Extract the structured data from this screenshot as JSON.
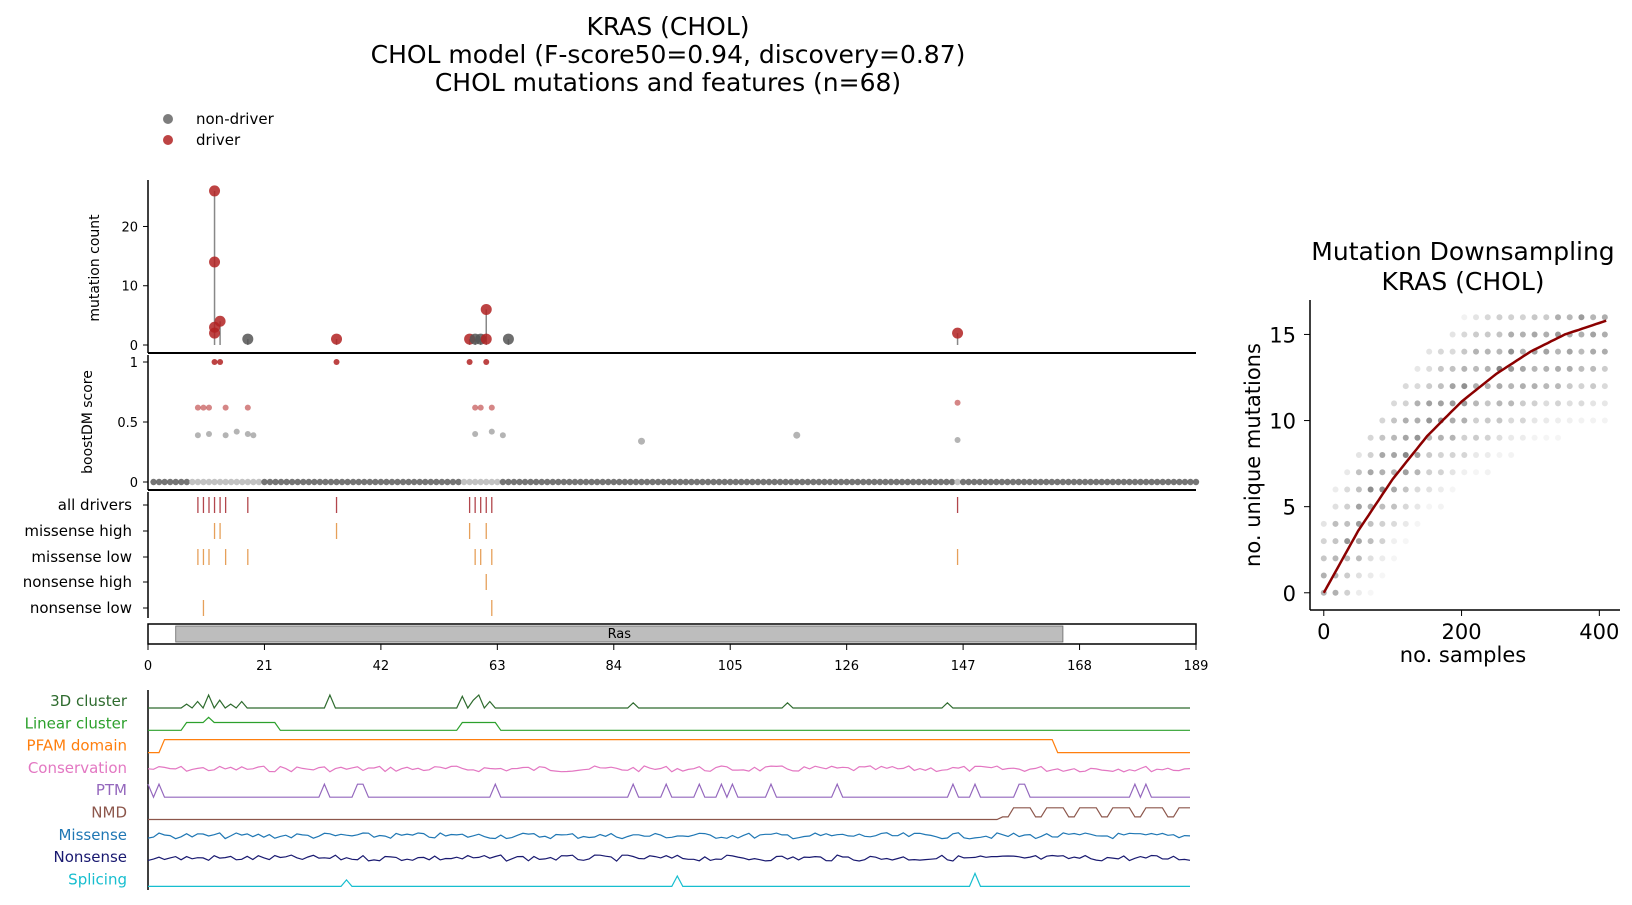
{
  "figure": {
    "title_lines": [
      "KRAS (CHOL)",
      "CHOL model (F-score50=0.94, discovery=0.87)",
      "CHOL mutations and features (n=68)"
    ],
    "legend": [
      {
        "label": "non-driver",
        "color": "#666666"
      },
      {
        "label": "driver",
        "color": "#b22222"
      }
    ],
    "domain": {
      "label": "Ras",
      "start": 5,
      "end": 165
    },
    "feature_labels": [
      {
        "label": "3D cluster",
        "color": "#2e6b2e"
      },
      {
        "label": "Linear cluster",
        "color": "#2ca02c"
      },
      {
        "label": "PFAM domain",
        "color": "#ff7f0e"
      },
      {
        "label": "Conservation",
        "color": "#e377c2"
      },
      {
        "label": "PTM",
        "color": "#9467bd"
      },
      {
        "label": "NMD",
        "color": "#8c564b"
      },
      {
        "label": "Missense",
        "color": "#1f77b4"
      },
      {
        "label": "Nonsense",
        "color": "#191970"
      },
      {
        "label": "Splicing",
        "color": "#17becf"
      }
    ]
  },
  "chart_data": [
    {
      "type": "scatter",
      "name": "mutation count lollipop",
      "ylabel": "mutation count",
      "xlim": [
        0,
        189
      ],
      "ylim": [
        0,
        27
      ],
      "yticks": [
        0,
        10,
        20
      ],
      "xticks": [
        0,
        21,
        42,
        63,
        84,
        105,
        126,
        147,
        168,
        189
      ],
      "points": [
        {
          "x": 12,
          "y": 26,
          "driver": true
        },
        {
          "x": 12,
          "y": 14,
          "driver": true
        },
        {
          "x": 12,
          "y": 3,
          "driver": true
        },
        {
          "x": 12,
          "y": 2,
          "driver": true
        },
        {
          "x": 13,
          "y": 4,
          "driver": true
        },
        {
          "x": 18,
          "y": 1,
          "driver": false
        },
        {
          "x": 34,
          "y": 1,
          "driver": true
        },
        {
          "x": 58,
          "y": 1,
          "driver": true
        },
        {
          "x": 59,
          "y": 1,
          "driver": false
        },
        {
          "x": 60,
          "y": 1,
          "driver": false
        },
        {
          "x": 61,
          "y": 6,
          "driver": true
        },
        {
          "x": 61,
          "y": 1,
          "driver": true
        },
        {
          "x": 65,
          "y": 1,
          "driver": false
        },
        {
          "x": 146,
          "y": 2,
          "driver": true
        }
      ]
    },
    {
      "type": "scatter",
      "name": "boostDM score",
      "ylabel": "boostDM score",
      "ylim": [
        0,
        1
      ],
      "yticks": [
        0,
        0.5,
        1
      ],
      "zero_baseline": "all positions 1-189 at score 0",
      "points": [
        {
          "x": 12,
          "y": 1.0,
          "driver": true
        },
        {
          "x": 13,
          "y": 1.0,
          "driver": true
        },
        {
          "x": 34,
          "y": 1.0,
          "driver": true
        },
        {
          "x": 58,
          "y": 1.0,
          "driver": true
        },
        {
          "x": 61,
          "y": 1.0,
          "driver": true
        },
        {
          "x": 9,
          "y": 0.62,
          "driver": true
        },
        {
          "x": 10,
          "y": 0.62,
          "driver": true
        },
        {
          "x": 11,
          "y": 0.62,
          "driver": true
        },
        {
          "x": 14,
          "y": 0.62,
          "driver": true
        },
        {
          "x": 18,
          "y": 0.62,
          "driver": true
        },
        {
          "x": 59,
          "y": 0.62,
          "driver": true
        },
        {
          "x": 60,
          "y": 0.62,
          "driver": true
        },
        {
          "x": 62,
          "y": 0.62,
          "driver": true
        },
        {
          "x": 146,
          "y": 0.66,
          "driver": true
        },
        {
          "x": 9,
          "y": 0.39,
          "driver": false
        },
        {
          "x": 11,
          "y": 0.4,
          "driver": false
        },
        {
          "x": 14,
          "y": 0.39,
          "driver": false
        },
        {
          "x": 16,
          "y": 0.42,
          "driver": false
        },
        {
          "x": 18,
          "y": 0.4,
          "driver": false
        },
        {
          "x": 19,
          "y": 0.39,
          "driver": false
        },
        {
          "x": 59,
          "y": 0.4,
          "driver": false
        },
        {
          "x": 62,
          "y": 0.42,
          "driver": false
        },
        {
          "x": 64,
          "y": 0.39,
          "driver": false
        },
        {
          "x": 89,
          "y": 0.34,
          "driver": false
        },
        {
          "x": 117,
          "y": 0.39,
          "driver": false
        },
        {
          "x": 146,
          "y": 0.35,
          "driver": false
        }
      ]
    },
    {
      "type": "scatter",
      "name": "driver tracks",
      "tracks": [
        {
          "label": "all drivers",
          "color": "#b2464c",
          "x": [
            9,
            10,
            11,
            12,
            13,
            14,
            18,
            34,
            58,
            59,
            60,
            61,
            62,
            146
          ]
        },
        {
          "label": "missense high",
          "color": "#e6a05a",
          "x": [
            12,
            13,
            34,
            58,
            61
          ]
        },
        {
          "label": "missense low",
          "color": "#e6a05a",
          "x": [
            9,
            10,
            11,
            14,
            18,
            59,
            60,
            62,
            146
          ]
        },
        {
          "label": "nonsense high",
          "color": "#e6a05a",
          "x": [
            61
          ]
        },
        {
          "label": "nonsense low",
          "color": "#e6a05a",
          "x": [
            10,
            62
          ]
        }
      ]
    },
    {
      "type": "line",
      "name": "feature tracks",
      "x_range": [
        0,
        189
      ],
      "series": [
        {
          "name": "3D cluster",
          "peaks": [
            [
              7,
              0.3
            ],
            [
              9,
              0.5
            ],
            [
              11,
              1.0
            ],
            [
              13,
              0.6
            ],
            [
              15,
              0.3
            ],
            [
              17,
              0.5
            ],
            [
              33,
              1.0
            ],
            [
              57,
              0.9
            ],
            [
              59,
              0.6
            ],
            [
              60,
              1.0
            ],
            [
              62,
              0.5
            ],
            [
              88,
              0.4
            ],
            [
              116,
              0.4
            ],
            [
              145,
              0.4
            ]
          ]
        },
        {
          "name": "Linear cluster",
          "intervals": [
            [
              7,
              23
            ],
            [
              57,
              63
            ]
          ],
          "peaks": [
            [
              11,
              1.0
            ]
          ]
        },
        {
          "name": "PFAM domain",
          "intervals": [
            [
              3,
              164
            ]
          ]
        },
        {
          "name": "Conservation",
          "type": "noise"
        },
        {
          "name": "PTM",
          "peaks": [
            [
              0,
              1
            ],
            [
              2,
              1
            ],
            [
              32,
              1
            ],
            [
              38,
              1
            ],
            [
              39,
              1
            ],
            [
              63,
              1
            ],
            [
              88,
              1
            ],
            [
              94,
              1
            ],
            [
              100,
              1
            ],
            [
              104,
              1
            ],
            [
              106,
              1
            ],
            [
              113,
              1
            ],
            [
              125,
              1
            ],
            [
              146,
              1
            ],
            [
              150,
              1
            ],
            [
              158,
              1
            ],
            [
              159,
              1
            ],
            [
              179,
              1
            ],
            [
              181,
              1
            ]
          ]
        },
        {
          "name": "NMD",
          "intervals": [
            [
              155,
              189
            ]
          ]
        },
        {
          "name": "Missense",
          "type": "noise"
        },
        {
          "name": "Nonsense",
          "type": "noise"
        },
        {
          "name": "Splicing",
          "peaks": [
            [
              36,
              0.5
            ],
            [
              96,
              0.8
            ],
            [
              150,
              1.0
            ]
          ]
        }
      ]
    },
    {
      "type": "scatter",
      "title": "Mutation Downsampling\nKRAS (CHOL)",
      "xlabel": "no. samples",
      "ylabel": "no. unique mutations",
      "xlim": [
        -20,
        430
      ],
      "ylim": [
        -1,
        17
      ],
      "xticks": [
        0,
        200,
        400
      ],
      "yticks": [
        0,
        5,
        10,
        15
      ],
      "fit_curve": {
        "color": "#8b0000",
        "x": [
          0,
          50,
          100,
          150,
          200,
          250,
          300,
          350,
          410
        ],
        "y": [
          0,
          3.6,
          6.6,
          9.1,
          11.1,
          12.7,
          14.0,
          15.0,
          15.8
        ]
      },
      "scatter_note": "grey dots (varying opacity) of downsampled replicates"
    }
  ]
}
